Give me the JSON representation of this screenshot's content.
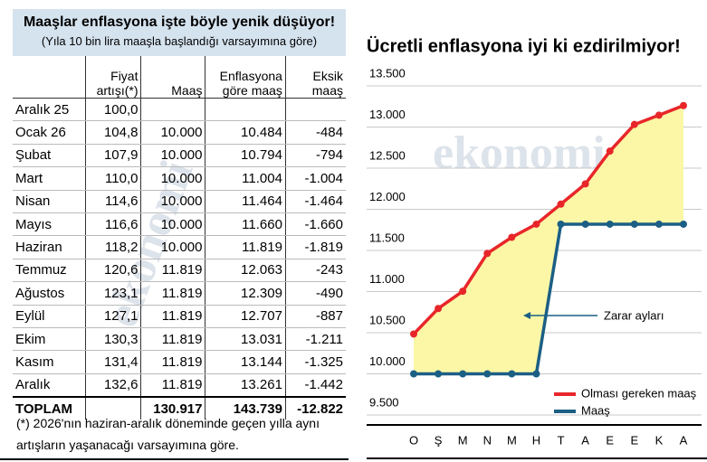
{
  "table": {
    "title": "Maaşlar enflasyona işte böyle yenik düşüyor!",
    "subtitle": "(Yıla 10 bin lira maaşla başlandığı varsayımına göre)",
    "header": [
      null,
      [
        "Fiyat",
        "artışı(*)"
      ],
      [
        "Maaş"
      ],
      [
        "Enflasyona",
        "göre maaş"
      ],
      [
        "Eksik",
        "maaş"
      ]
    ],
    "rows": [
      [
        "Aralık 25",
        "100,0",
        null,
        null,
        null
      ],
      [
        "Ocak 26",
        "104,8",
        "10.000",
        "10.484",
        "-484"
      ],
      [
        "Şubat",
        "107,9",
        "10.000",
        "10.794",
        "-794"
      ],
      [
        "Mart",
        "110,0",
        "10.000",
        "11.004",
        "-1.004"
      ],
      [
        "Nisan",
        "114,6",
        "10.000",
        "11.464",
        "-1.464"
      ],
      [
        "Mayıs",
        "116,6",
        "10.000",
        "11.660",
        "-1.660"
      ],
      [
        "Haziran",
        "118,2",
        "10.000",
        "11.819",
        "-1.819"
      ],
      [
        "Temmuz",
        "120,6",
        "11.819",
        "12.063",
        "-243"
      ],
      [
        "Ağustos",
        "123,1",
        "11.819",
        "12.309",
        "-490"
      ],
      [
        "Eylül",
        "127,1",
        "11.819",
        "12.707",
        "-887"
      ],
      [
        "Ekim",
        "130,3",
        "11.819",
        "13.031",
        "-1.211"
      ],
      [
        "Kasım",
        "131,4",
        "11.819",
        "13.144",
        "-1.325"
      ],
      [
        "Aralık",
        "132,6",
        "11.819",
        "13.261",
        "-1.442"
      ]
    ],
    "total": [
      "TOPLAM",
      null,
      "130.917",
      "143.739",
      "-12.822"
    ],
    "footnote": "(*) 2026'nın haziran-aralık döneminde geçen yılla aynı artışların yaşanacağı varsayımına göre."
  },
  "watermark": "ekonomi",
  "chart_data": {
    "type": "line",
    "title": "Ücretli enflasyona iyi ki ezdirilmiyor!",
    "categories": [
      "O",
      "Ş",
      "M",
      "N",
      "M",
      "H",
      "T",
      "A",
      "E",
      "E",
      "K",
      "A"
    ],
    "series": [
      {
        "name": "Olması gereken maaş",
        "color": "#e8262a",
        "values": [
          10484,
          10794,
          11004,
          11464,
          11660,
          11819,
          12063,
          12309,
          12707,
          13031,
          13144,
          13261
        ]
      },
      {
        "name": "Maaş",
        "color": "#1c5f85",
        "values": [
          10000,
          10000,
          10000,
          10000,
          10000,
          10000,
          11819,
          11819,
          11819,
          11819,
          11819,
          11819
        ]
      }
    ],
    "ylim": [
      9500,
      13500
    ],
    "yticks": [
      {
        "value": 9500,
        "label": "9.500"
      },
      {
        "value": 10000,
        "label": "10.000"
      },
      {
        "value": 10500,
        "label": "10.500"
      },
      {
        "value": 11000,
        "label": "11.000"
      },
      {
        "value": 11500,
        "label": "11.500"
      },
      {
        "value": 12000,
        "label": "12.000"
      },
      {
        "value": 12500,
        "label": "12.500"
      },
      {
        "value": 13000,
        "label": "13.000"
      },
      {
        "value": 13500,
        "label": "13.500"
      }
    ],
    "grid": true,
    "fill_between": "#fbf7a6",
    "annotation": "Zarar ayları"
  }
}
